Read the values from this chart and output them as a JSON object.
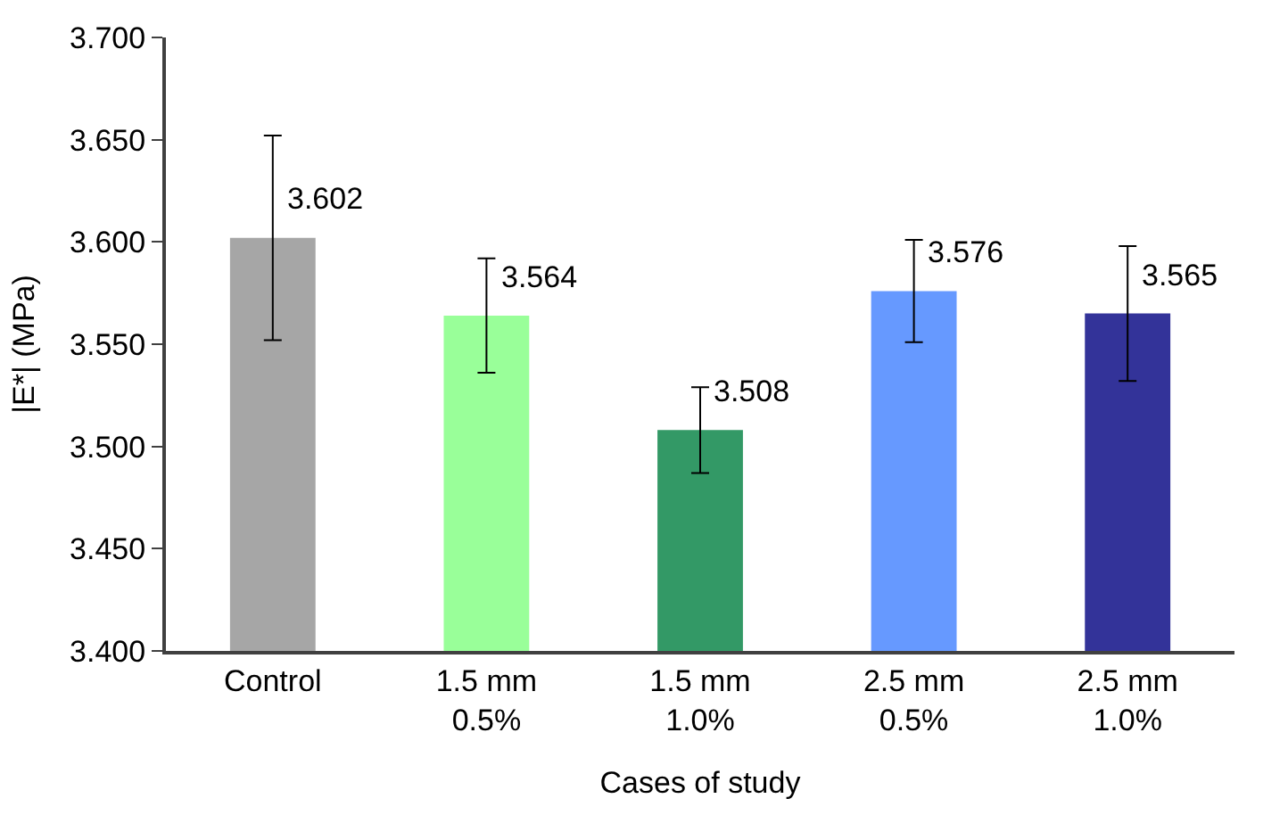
{
  "chart_data": {
    "type": "bar",
    "xlabel": "Cases of study",
    "ylabel": "|E*| (MPa)",
    "categories": [
      "Control",
      "1.5 mm\n0.5%",
      "1.5 mm\n1.0%",
      "2.5 mm\n0.5%",
      "2.5 mm\n1.0%"
    ],
    "values": [
      3.602,
      3.564,
      3.508,
      3.576,
      3.565
    ],
    "colors": [
      "#a6a6a6",
      "#99ff99",
      "#339966",
      "#6699ff",
      "#333399"
    ],
    "errors": [
      0.05,
      0.028,
      0.021,
      0.025,
      0.033
    ],
    "data_labels": true,
    "ylim": [
      3.4,
      3.7
    ],
    "yticks": [
      {
        "value": 3.4,
        "label": "3.400"
      },
      {
        "value": 3.45,
        "label": "3.450"
      },
      {
        "value": 3.5,
        "label": "3.500"
      },
      {
        "value": 3.55,
        "label": "3.550"
      },
      {
        "value": 3.6,
        "label": "3.600"
      },
      {
        "value": 3.65,
        "label": "3.650"
      },
      {
        "value": 3.7,
        "label": "3.700"
      }
    ]
  }
}
